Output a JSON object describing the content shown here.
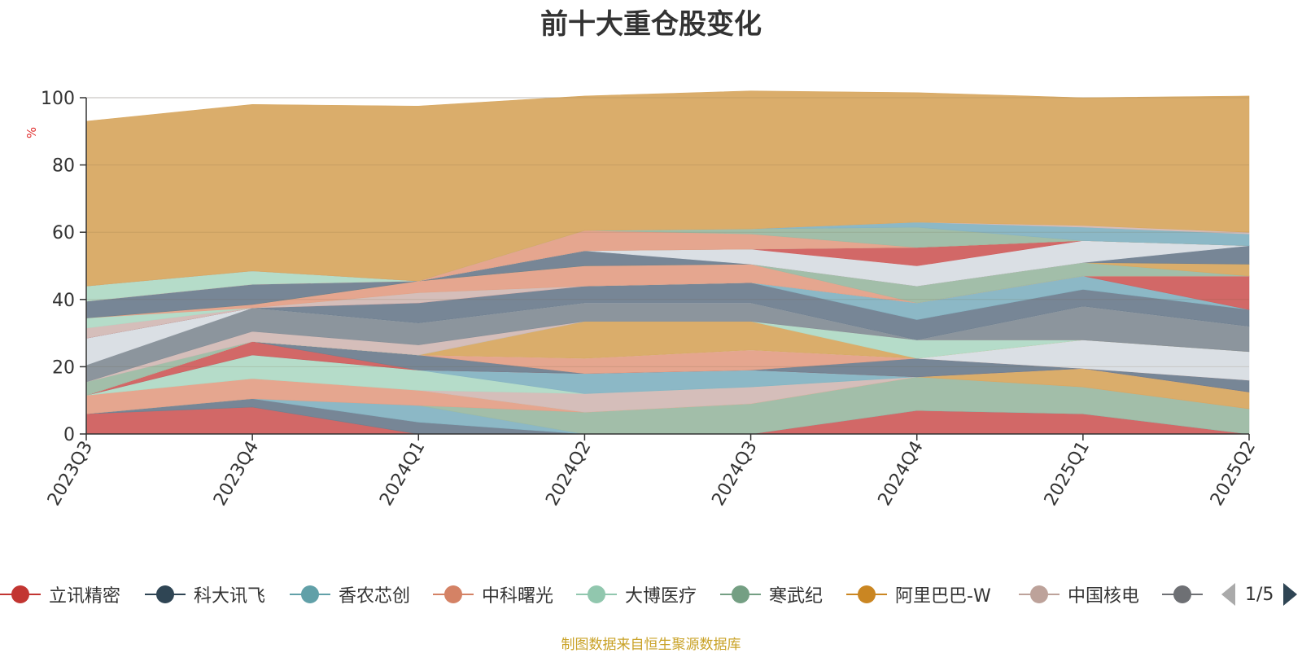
{
  "chart_title": "前十大重仓股变化",
  "source_note": "制图数据来自恒生聚源数据库",
  "legend_page": "1/5",
  "y_unit": "%",
  "chart_data": {
    "type": "area",
    "stacked": true,
    "title": "前十大重仓股变化",
    "ylabel": "%",
    "ylim": [
      0,
      100
    ],
    "yticks": [
      0,
      20,
      40,
      60,
      80,
      100
    ],
    "grid": true,
    "legend_position": "bottom",
    "categories": [
      "2023Q3",
      "2023Q4",
      "2024Q1",
      "2024Q2",
      "2024Q3",
      "2024Q4",
      "2025Q1",
      "2025Q2"
    ],
    "series": [
      {
        "name": "立讯精密",
        "color": "#d0605f",
        "values": [
          6,
          8,
          0,
          0,
          0,
          7,
          6,
          0
        ]
      },
      {
        "name": "",
        "color": "#708090",
        "values": [
          0,
          2.5,
          3.5,
          0,
          0,
          0,
          0,
          0
        ]
      },
      {
        "name": "",
        "color": "#86b4c3",
        "values": [
          0,
          0,
          5,
          0,
          0,
          0,
          0,
          0
        ]
      },
      {
        "name": "",
        "color": "#9dbba4",
        "values": [
          0,
          0,
          0,
          6.5,
          9,
          10,
          8,
          7.5
        ]
      },
      {
        "name": "",
        "color": "#e4a189",
        "values": [
          5.5,
          6,
          4.5,
          0,
          0,
          0,
          0,
          0
        ]
      },
      {
        "name": "",
        "color": "#d8a963",
        "values": [
          0,
          0,
          0,
          0,
          0,
          0,
          5.5,
          5
        ]
      },
      {
        "name": "",
        "color": "#d3bab6",
        "values": [
          0,
          0,
          0,
          5.5,
          5,
          0,
          0,
          0
        ]
      },
      {
        "name": "",
        "color": "#b1dac6",
        "values": [
          0,
          7,
          6,
          0,
          0,
          0,
          0,
          0
        ]
      },
      {
        "name": "",
        "color": "#86b4c3",
        "values": [
          0,
          0,
          0,
          6,
          5,
          0,
          0,
          0
        ]
      },
      {
        "name": "",
        "color": "#d0605f",
        "values": [
          0,
          4,
          0,
          0,
          0,
          0,
          0,
          0
        ]
      },
      {
        "name": "",
        "color": "#708090",
        "values": [
          0,
          0,
          4.5,
          0,
          0,
          5.5,
          0,
          3.5
        ]
      },
      {
        "name": "",
        "color": "#e4a189",
        "values": [
          0,
          0,
          0,
          4.5,
          6,
          0,
          0,
          0
        ]
      },
      {
        "name": "",
        "color": "#d8dde3",
        "values": [
          0,
          0,
          0,
          0,
          0,
          0,
          8.5,
          8.5
        ]
      },
      {
        "name": "",
        "color": "#d8a963",
        "values": [
          0,
          0,
          0,
          11,
          8.5,
          0,
          0,
          0
        ]
      },
      {
        "name": "",
        "color": "#b1dac6",
        "values": [
          0,
          0,
          0,
          0,
          0,
          5.5,
          0,
          0
        ]
      },
      {
        "name": "",
        "color": "#9dbba4",
        "values": [
          4,
          0,
          0,
          0,
          0,
          0,
          0,
          0
        ]
      },
      {
        "name": "",
        "color": "#d3bab6",
        "values": [
          0,
          3,
          3,
          0,
          0,
          0,
          0,
          0
        ]
      },
      {
        "name": "",
        "color": "#868f98",
        "values": [
          5,
          7,
          6.5,
          5.5,
          5.5,
          0,
          10,
          7.5
        ]
      },
      {
        "name": "",
        "color": "#d8dde3",
        "values": [
          8,
          0,
          0,
          0,
          0,
          0,
          0,
          0
        ]
      },
      {
        "name": "",
        "color": "#708090",
        "values": [
          0,
          0,
          6,
          5,
          6,
          6,
          5,
          5
        ]
      },
      {
        "name": "",
        "color": "#86b4c3",
        "values": [
          0,
          0,
          0,
          0,
          0,
          5,
          4,
          0
        ]
      },
      {
        "name": "",
        "color": "#d0605f",
        "values": [
          0,
          0,
          0,
          0,
          0,
          0,
          0,
          10
        ]
      },
      {
        "name": "",
        "color": "#d3bab6",
        "values": [
          3,
          0,
          3,
          0,
          0,
          0,
          0,
          0
        ]
      },
      {
        "name": "",
        "color": "#b1dac6",
        "values": [
          3,
          0,
          0,
          0,
          0,
          0,
          0,
          0
        ]
      },
      {
        "name": "",
        "color": "#e4a189",
        "values": [
          0,
          1,
          3.5,
          6,
          5.5,
          0,
          0,
          0
        ]
      },
      {
        "name": "",
        "color": "#9dbba4",
        "values": [
          0,
          0,
          0,
          0,
          0,
          5,
          4,
          0
        ]
      },
      {
        "name": "",
        "color": "#d8a963",
        "values": [
          0,
          0,
          0,
          0,
          0,
          0,
          0,
          3.5
        ]
      },
      {
        "name": "",
        "color": "#708090",
        "values": [
          5,
          6,
          0,
          4.5,
          0,
          0,
          0,
          5.5
        ]
      },
      {
        "name": "",
        "color": "#d8dde3",
        "values": [
          0,
          0,
          0,
          0,
          4.5,
          6,
          6.5,
          0
        ]
      },
      {
        "name": "",
        "color": "#d0605f",
        "values": [
          0,
          0,
          0,
          0,
          0,
          5.5,
          0,
          0
        ]
      },
      {
        "name": "",
        "color": "#b1dac6",
        "values": [
          4.5,
          4,
          0,
          0,
          0,
          0,
          0,
          0
        ]
      },
      {
        "name": "",
        "color": "#e4a189",
        "values": [
          0,
          0,
          0,
          6,
          4.5,
          0,
          0,
          0
        ]
      },
      {
        "name": "",
        "color": "#9dbba4",
        "values": [
          0,
          0,
          0,
          0,
          1.5,
          6,
          0,
          0
        ]
      },
      {
        "name": "",
        "color": "#86b4c3",
        "values": [
          0,
          0,
          0,
          0,
          0,
          1.5,
          4,
          3.5
        ]
      },
      {
        "name": "",
        "color": "#d3bab6",
        "values": [
          0,
          0,
          0,
          0,
          0,
          0,
          0.5,
          0.5
        ]
      },
      {
        "name": "阿里巴巴-W",
        "color": "#d8a963",
        "values": [
          49,
          49.5,
          52,
          40,
          41,
          38.5,
          38,
          40.5
        ]
      }
    ]
  },
  "legend": [
    {
      "label": "立讯精密",
      "color": "#c23531"
    },
    {
      "label": "科大讯飞",
      "color": "#2f4554"
    },
    {
      "label": "香农芯创",
      "color": "#61a0a8"
    },
    {
      "label": "中科曙光",
      "color": "#d48265"
    },
    {
      "label": "大博医疗",
      "color": "#91c7ae"
    },
    {
      "label": "寒武纪",
      "color": "#749f83"
    },
    {
      "label": "阿里巴巴-W",
      "color": "#ca8622"
    },
    {
      "label": "中国核电",
      "color": "#bda29a"
    },
    {
      "label": "",
      "color": "#6e7074"
    }
  ]
}
